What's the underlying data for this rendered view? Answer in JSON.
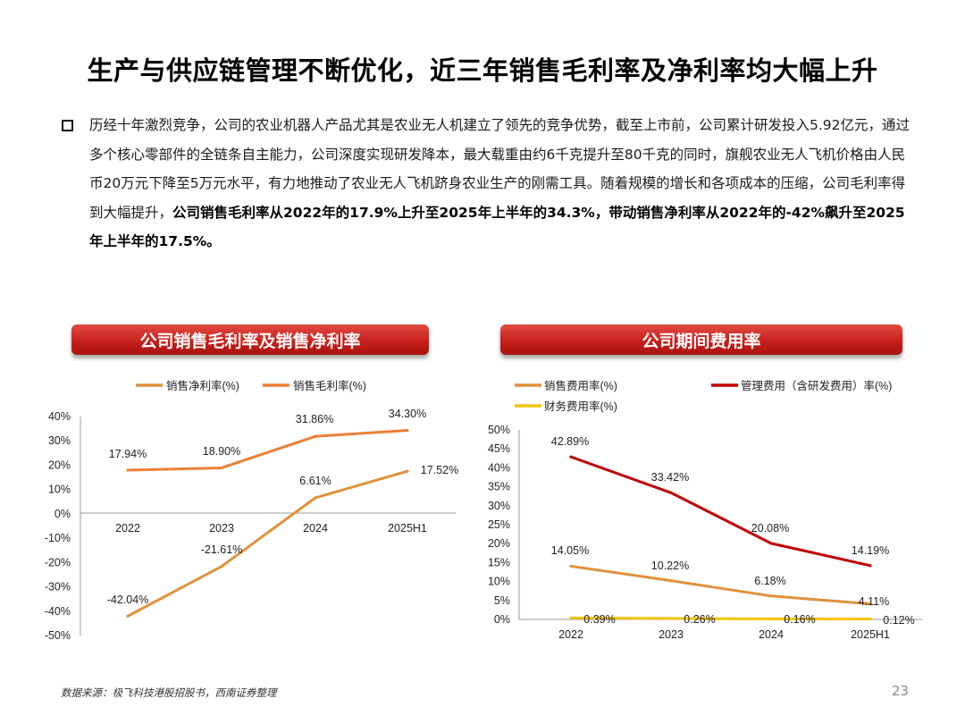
{
  "title": "生产与供应链管理不断优化，近三年销售毛利率及净利率均大幅上升",
  "paragraph": {
    "normal": "历经十年激烈竞争，公司的农业机器人产品尤其是农业无人机建立了领先的竞争优势，截至上市前，公司累计研发投入5.92亿元，通过多个核心零部件的全链条自主能力，公司深度实现研发降本，最大载重由约6千克提升至80千克的同时，旗舰农业无人飞机价格由人民币20万元下降至5万元水平，有力地推动了农业无人飞机跻身农业生产的刚需工具。随着规模的增长和各项成本的压缩，公司毛利率得到大幅提升，",
    "bold": "公司销售毛利率从2022年的17.9%上升至2025年上半年的34.3%，带动销售净利率从2022年的-42%飙升至2025年上半年的17.5%。"
  },
  "banners": {
    "left": "公司销售毛利率及销售净利率",
    "right": "公司期间费用率"
  },
  "colors": {
    "orange": "#e0913b",
    "red": "#c00000",
    "yellow": "#f5c400"
  },
  "footer": {
    "source": "数据来源：极飞科技港股招股书，西南证券整理",
    "page": "23"
  },
  "chart_data": [
    {
      "type": "line",
      "title": "公司销售毛利率及销售净利率",
      "categories": [
        "2022",
        "2023",
        "2024",
        "2025H1"
      ],
      "ylim": [
        -50,
        40
      ],
      "yticks": [
        "40%",
        "30%",
        "20%",
        "10%",
        "0%",
        "-10%",
        "-20%",
        "-30%",
        "-40%",
        "-50%"
      ],
      "legend_position": "top",
      "series": [
        {
          "name": "销售净利率(%)",
          "color": "#e0913b",
          "values": [
            -42.04,
            -21.61,
            6.61,
            17.52
          ],
          "labels": [
            "-42.04%",
            "-21.61%",
            "6.61%",
            "17.52%"
          ]
        },
        {
          "name": "销售毛利率(%)",
          "color": "#ec7f35",
          "values": [
            17.94,
            18.9,
            31.86,
            34.3
          ],
          "labels": [
            "17.94%",
            "18.90%",
            "31.86%",
            "34.30%"
          ]
        }
      ]
    },
    {
      "type": "line",
      "title": "公司期间费用率",
      "categories": [
        "2022",
        "2023",
        "2024",
        "2025H1"
      ],
      "ylim": [
        0,
        50
      ],
      "yticks": [
        "50%",
        "45%",
        "40%",
        "35%",
        "30%",
        "25%",
        "20%",
        "15%",
        "10%",
        "5%",
        "0%"
      ],
      "legend_position": "top",
      "series": [
        {
          "name": "销售费用率(%)",
          "color": "#e0913b",
          "values": [
            14.05,
            10.22,
            6.18,
            4.11
          ],
          "labels": [
            "14.05%",
            "10.22%",
            "6.18%",
            "4.11%"
          ]
        },
        {
          "name": "管理费用（含研发费用）率(%)",
          "color": "#c00000",
          "values": [
            42.89,
            33.42,
            20.08,
            14.19
          ],
          "labels": [
            "42.89%",
            "33.42%",
            "20.08%",
            "14.19%"
          ]
        },
        {
          "name": "财务费用率(%)",
          "color": "#f5c400",
          "values": [
            0.39,
            0.26,
            0.16,
            0.12
          ],
          "labels": [
            "0.39%",
            "0.26%",
            "0.16%",
            "0.12%"
          ]
        }
      ]
    }
  ]
}
